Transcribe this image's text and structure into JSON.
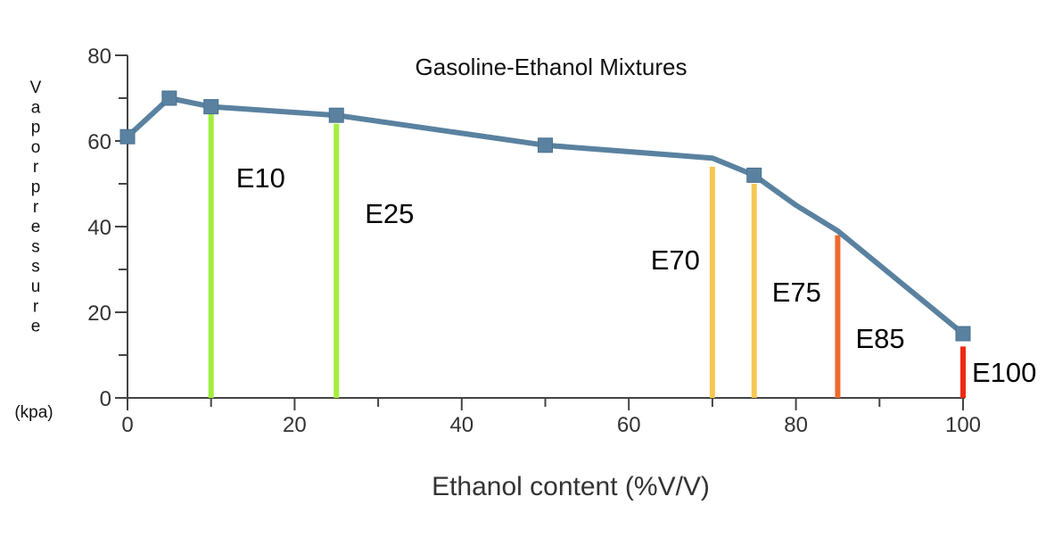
{
  "chart_data": {
    "type": "line",
    "title": "Gasoline-Ethanol Mixtures",
    "xlabel": "Ethanol content (%V/V)",
    "ylabel": "Vapor pressure",
    "ylabel_unit": "(kpa)",
    "xlim": [
      0,
      100
    ],
    "ylim": [
      0,
      80
    ],
    "x_ticks": [
      0,
      20,
      40,
      60,
      80,
      100
    ],
    "y_ticks": [
      0,
      20,
      40,
      60,
      80
    ],
    "grid": false,
    "line_color": "#5a82a0",
    "series": [
      {
        "x": [
          0,
          5,
          10,
          25,
          50,
          70,
          75,
          80,
          85,
          100
        ],
        "y": [
          61,
          70,
          68,
          66,
          59,
          56,
          52,
          45,
          39,
          15
        ],
        "markers": [
          true,
          true,
          true,
          true,
          true,
          false,
          true,
          false,
          false,
          true
        ]
      }
    ],
    "annotations": [
      {
        "label": "E10",
        "x": 10,
        "y_top": 67,
        "color": "#a2ee3e"
      },
      {
        "label": "E25",
        "x": 25,
        "y_top": 64,
        "color": "#a2ee3e"
      },
      {
        "label": "E70",
        "x": 70,
        "y_top": 54,
        "color": "#f5c853"
      },
      {
        "label": "E75",
        "x": 75,
        "y_top": 50,
        "color": "#f5c853"
      },
      {
        "label": "E85",
        "x": 85,
        "y_top": 38,
        "color": "#ee6a2f"
      },
      {
        "label": "E100",
        "x": 100,
        "y_top": 12,
        "color": "#ee2a12"
      }
    ]
  }
}
